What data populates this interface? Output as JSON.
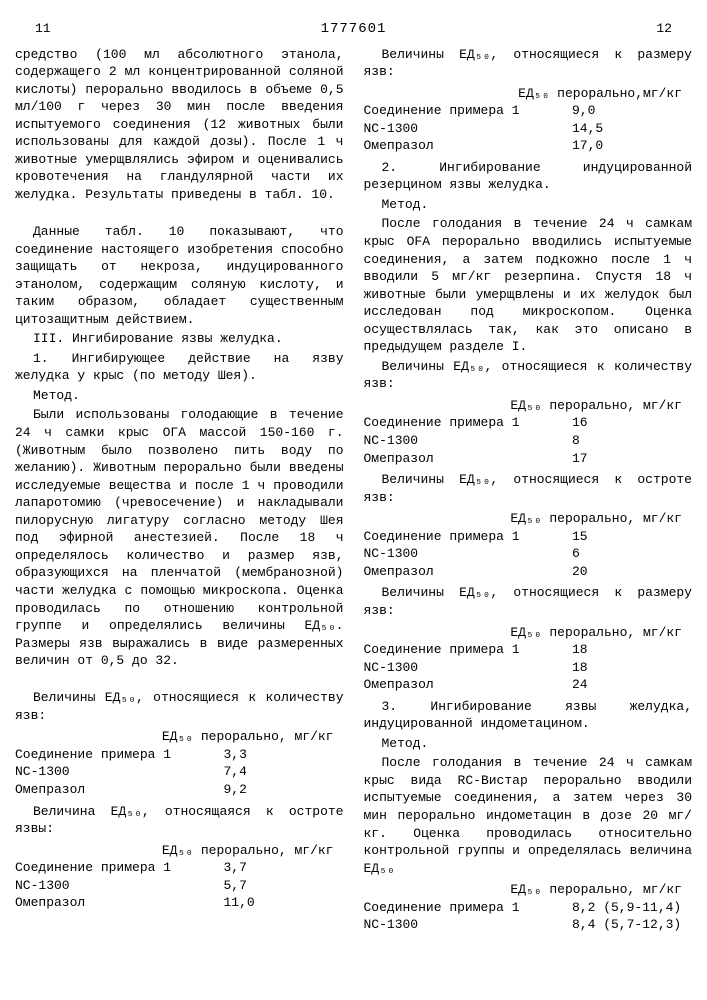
{
  "header": {
    "left_page": "11",
    "doc_number": "1777601",
    "right_page": "12"
  },
  "margin_markers": [
    "5",
    "10",
    "15",
    "20",
    "25",
    "30",
    "35",
    "40",
    "45",
    "50",
    "55"
  ],
  "left_col": {
    "p1": "средство (100 мл абсолютного этанола, содержащего 2 мл концентрированной соляной кислоты) перорально вводилось в объеме 0,5 мл/100 г через 30 мин после введения испытуемого соединения (12 животных были использованы для каждой дозы). После 1 ч животные умерщвлялись эфиром и оценивались кровотечения на гландулярной части их желудка. Результаты приведены в табл. 10.",
    "p2": "Данные табл. 10 показывают, что соединение настоящего изобретения способно защищать от некроза, индуцированного этанолом, содержащим соляную кислоту, и таким образом, обладает существенным цитозащитным действием.",
    "p3": "III. Ингибирование язвы желудка.",
    "p4": "1. Ингибирующее действие на язву желудка у крыс (по методу Шея).",
    "p5": "Метод.",
    "p6": "Были использованы голодающие в течение 24 ч самки крыс ОГА массой 150-160 г. (Животным было позволено пить воду по желанию). Животным перорально были введены исследуемые вещества и после 1 ч проводили лапаротомию (чревосечение) и накладывали пилорусную лигатуру согласно методу Шея под эфирной анестезией. После 18 ч определялось количество и размер язв, образующихся на пленчатой (мембранозной) части желудка с помощью микроскопа. Оценка проводилась по отношению контрольной группе и определялись величины ЕД₅₀. Размеры язв выражались в виде размеренных величин от 0,5 до 32.",
    "t1_title": "Величины ЕД₅₀, относящиеся к количеству язв:",
    "t1_header": "ЕД₅₀ перорально, мг/кг",
    "t1_r1_label": "Соединение примера 1",
    "t1_r1_val": "3,3",
    "t1_r2_label": "NC-1300",
    "t1_r2_val": "7,4",
    "t1_r3_label": "Омепразол",
    "t1_r3_val": "9,2",
    "t2_title": "Величина ЕД₅₀, относящаяся к остроте язвы:",
    "t2_header": "ЕД₅₀ перорально, мг/кг",
    "t2_r1_label": "Соединение примера 1",
    "t2_r1_val": "3,7",
    "t2_r2_label": "NC-1300",
    "t2_r2_val": "5,7",
    "t2_r3_label": "Омепразол",
    "t2_r3_val": "11,0"
  },
  "right_col": {
    "t3_title": "Величины ЕД₅₀, относящиеся к размеру язв:",
    "t3_header": "ЕД₅₀ перорально,мг/кг",
    "t3_r1_label": "Соединение примера 1",
    "t3_r1_val": "9,0",
    "t3_r2_label": "NC-1300",
    "t3_r2_val": "14,5",
    "t3_r3_label": "Омепразол",
    "t3_r3_val": "17,0",
    "p1": "2. Ингибирование индуцированной резерцином язвы желудка.",
    "p2": "Метод.",
    "p3": "После голодания в течение 24 ч самкам крыс OFA перорально вводились испытуемые соединения, а затем подкожно после 1 ч вводили 5 мг/кг резерпина. Спустя 18 ч животные были умерщвлены и их желудок был исследован под микроскопом. Оценка осуществлялась так, как это описано в предыдущем разделе I.",
    "t4_title": "Величины ЕД₅₀, относящиеся к количеству язв:",
    "t4_header": "ЕД₅₀ перорально, мг/кг",
    "t4_r1_label": "Соединение примера 1",
    "t4_r1_val": "16",
    "t4_r2_label": "NC-1300",
    "t4_r2_val": "8",
    "t4_r3_label": "Омепразол",
    "t4_r3_val": "17",
    "t5_title": "Величины ЕД₅₀, относящиеся к остроте язв:",
    "t5_header": "ЕД₅₀ перорально, мг/кг",
    "t5_r1_label": "Соединение примера 1",
    "t5_r1_val": "15",
    "t5_r2_label": "NC-1300",
    "t5_r2_val": "6",
    "t5_r3_label": "Омепразол",
    "t5_r3_val": "20",
    "t6_title": "Величины ЕД₅₀, относящиеся к размеру язв:",
    "t6_header": "ЕД₅₀ перорально, мг/кг",
    "t6_r1_label": "Соединение примера 1",
    "t6_r1_val": "18",
    "t6_r2_label": "NC-1300",
    "t6_r2_val": "18",
    "t6_r3_label": "Омепразол",
    "t6_r3_val": "24",
    "p4": "3. Ингибирование язвы желудка, индуцированной индометацином.",
    "p5": "Метод.",
    "p6": "После голодания в течение 24 ч самкам крыс вида RС-Вистар перорально вводили испытуемые соединения, а затем через 30 мин перорально индометацин в дозе 20 мг/кг. Оценка проводилась относительно контрольной группы и определялась величина ЕД₅₀",
    "t7_header": "ЕД₅₀ перорально, мг/кг",
    "t7_r1_label": "Соединение примера 1",
    "t7_r1_val": "8,2 (5,9-11,4)",
    "t7_r2_label": "NC-1300",
    "t7_r2_val": "8,4 (5,7-12,3)"
  }
}
